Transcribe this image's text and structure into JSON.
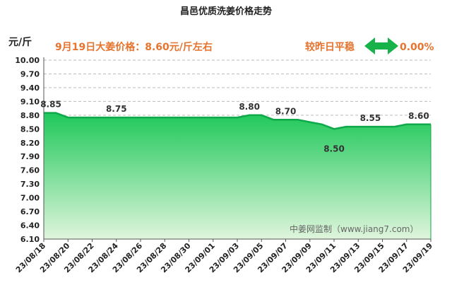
{
  "chart_data": {
    "type": "area",
    "title": "昌邑优质洗姜价格走势",
    "unit_label": "元/斤",
    "info_text": "9月19日大姜价格：8.60元/斤左右",
    "compare_label": "较昨日平稳",
    "compare_value": "0.00%",
    "watermark": "中姜网监制（www.jiang7.com）",
    "ylim": [
      6.1,
      10.0
    ],
    "y_ticks": [
      "10.00",
      "9.70",
      "9.40",
      "9.10",
      "8.80",
      "8.50",
      "8.20",
      "7.90",
      "7.60",
      "7.30",
      "7.00",
      "6.70",
      "6.40",
      "6.10"
    ],
    "x_tick_labels": [
      "23/08/18",
      "23/08/20",
      "23/08/22",
      "23/08/24",
      "23/08/26",
      "23/08/28",
      "23/08/30",
      "23/09/01",
      "23/09/03",
      "23/09/05",
      "23/09/07",
      "23/09/09",
      "23/09/11",
      "23/09/13",
      "23/09/15",
      "23/09/17",
      "23/09/19"
    ],
    "values": [
      8.85,
      8.85,
      8.75,
      8.75,
      8.75,
      8.75,
      8.75,
      8.75,
      8.75,
      8.75,
      8.75,
      8.75,
      8.75,
      8.75,
      8.75,
      8.75,
      8.75,
      8.8,
      8.8,
      8.7,
      8.7,
      8.7,
      8.65,
      8.6,
      8.5,
      8.55,
      8.55,
      8.55,
      8.55,
      8.55,
      8.6,
      8.6,
      8.6
    ],
    "annotations": [
      {
        "index": 0,
        "text": "8.85"
      },
      {
        "index": 6,
        "text": "8.75"
      },
      {
        "index": 17,
        "text": "8.80"
      },
      {
        "index": 20,
        "text": "8.70"
      },
      {
        "index": 24,
        "text": "8.50"
      },
      {
        "index": 27,
        "text": "8.55"
      },
      {
        "index": 31,
        "text": "8.60"
      }
    ],
    "grid": true,
    "colors": {
      "fill_top": "#1fc85a",
      "fill_bottom": "#dff5dc",
      "line": "#0fa84a",
      "info": "#e6732e",
      "arrow": "#17b24a"
    }
  }
}
